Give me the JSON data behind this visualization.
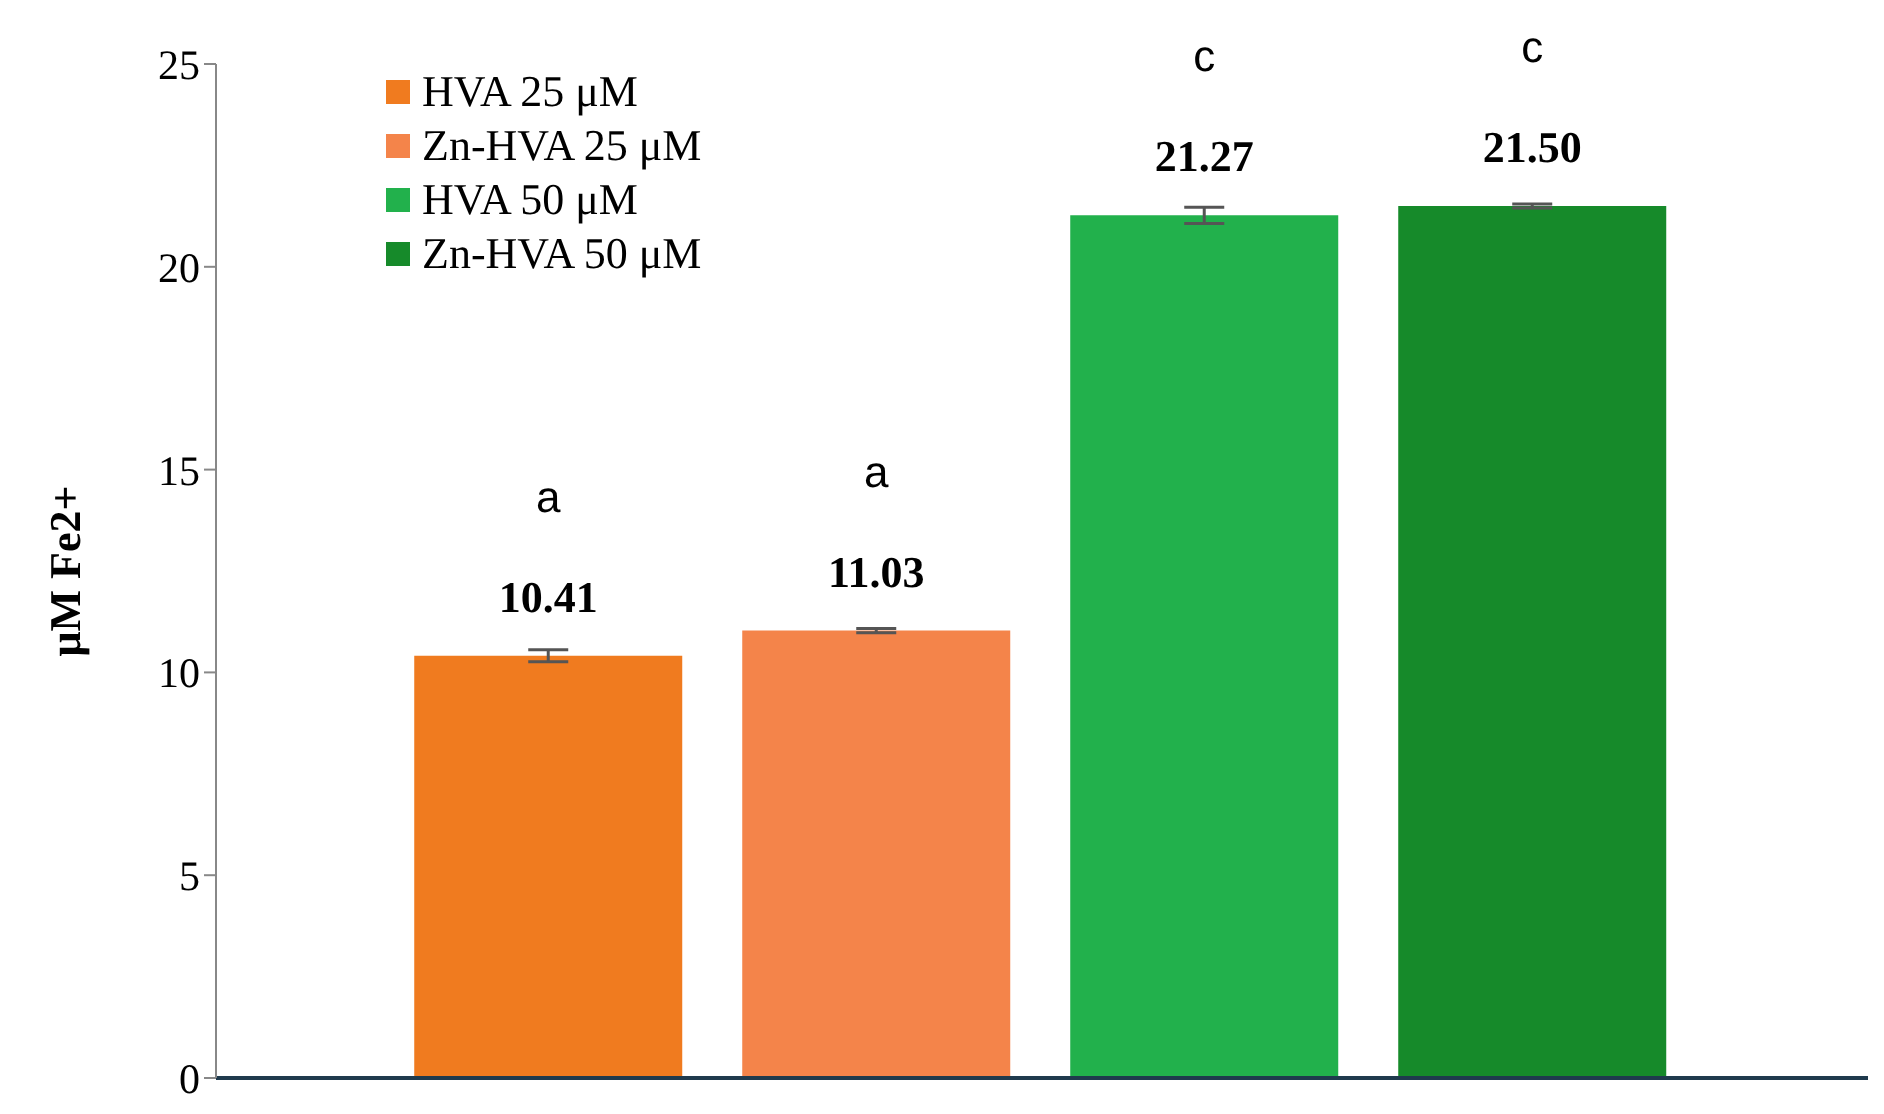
{
  "chart_data": {
    "type": "bar",
    "ylabel": "μM Fe2+",
    "categories": [
      null
    ],
    "series": [
      {
        "name": "HVA 25 μM",
        "color": "#f07b1f",
        "values": [
          10.41
        ],
        "errors": [
          0.15
        ],
        "value_labels": [
          "10.41"
        ]
      },
      {
        "name": "Zn-HVA 25 μM",
        "color": "#f4844a",
        "values": [
          11.03
        ],
        "errors": [
          0.05
        ],
        "value_labels": [
          "11.03"
        ]
      },
      {
        "name": "HVA 50 μM",
        "color": "#22b14c",
        "values": [
          21.27
        ],
        "errors": [
          0.2
        ],
        "value_labels": [
          "21.27"
        ]
      },
      {
        "name": "Zn-HVA 50 μM",
        "color": "#168a2a",
        "values": [
          21.5
        ],
        "errors": [
          0.05
        ],
        "value_labels": [
          "21.50"
        ]
      }
    ],
    "annotations": [
      "a",
      "a",
      "c",
      "c"
    ],
    "ylim": [
      0,
      25
    ],
    "yticks": [
      0,
      5,
      10,
      15,
      20,
      25
    ],
    "grid": false,
    "legend": "top left"
  }
}
